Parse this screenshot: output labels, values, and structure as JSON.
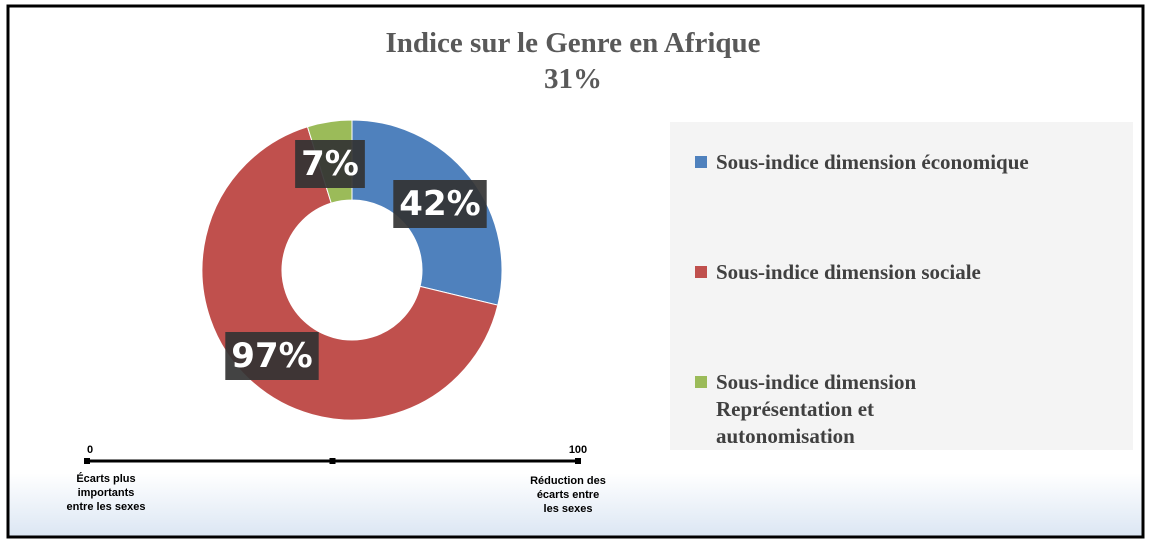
{
  "chart_data": {
    "type": "donut",
    "title": "Indice sur le Genre en Afrique",
    "subtitle": "31%",
    "series": [
      {
        "name": "Sous-indice dimension économique",
        "color": "#4f81bd",
        "values": [
          42
        ],
        "value_labels": [
          "42%"
        ]
      },
      {
        "name": "Sous-indice dimension sociale",
        "color": "#c0504d",
        "values": [
          97
        ],
        "value_labels": [
          "97%"
        ]
      },
      {
        "name": "Sous-indice dimension Représentation et autonomisation",
        "color": "#9bbb59",
        "values": [
          7
        ],
        "value_labels": [
          "7%"
        ]
      }
    ],
    "legend": "right",
    "scale": {
      "ticks": [
        0,
        100
      ],
      "min_caption": [
        "Écarts plus",
        "importants",
        "entre les sexes"
      ],
      "max_caption": [
        "Réduction des",
        "écarts entre",
        "les sexes"
      ]
    }
  }
}
